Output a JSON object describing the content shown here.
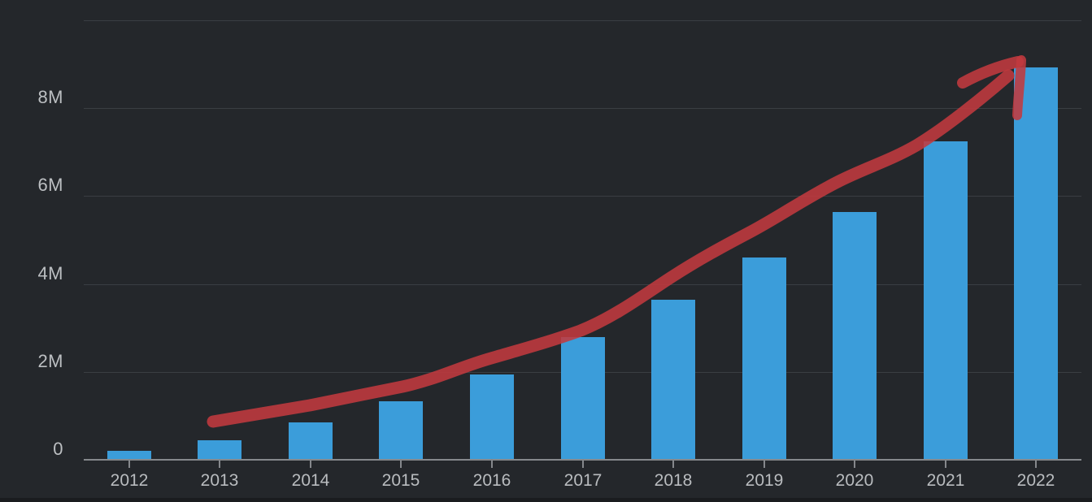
{
  "colors": {
    "background": "#24272b",
    "bar": "#3b9dda",
    "arrow_red": "#c23a3f",
    "gridline": "#3a3e43",
    "axis_line": "#85888c",
    "y_label": "#bcbfc2",
    "x_label": "#b9bcbf",
    "bottom_strip": "#1a1c1f"
  },
  "chart_data": {
    "type": "bar",
    "title": "",
    "xlabel": "",
    "ylabel": "",
    "categories": [
      "2012",
      "2013",
      "2014",
      "2015",
      "2016",
      "2017",
      "2018",
      "2019",
      "2020",
      "2021",
      "2022"
    ],
    "values": [
      200000,
      450000,
      850000,
      1330000,
      1950000,
      2800000,
      3640000,
      4600000,
      5630000,
      7250000,
      8930000
    ],
    "y_tick_labels": [
      "0",
      "2M",
      "4M",
      "6M",
      "8M"
    ],
    "y_tick_values": [
      0,
      2000000,
      4000000,
      6000000,
      8000000
    ],
    "ylim": [
      0,
      10000000
    ],
    "grid": true,
    "legend": false,
    "annotation": "hand-drawn red arrow emphasizing upward growth trend from 2013 to the 2022 bar"
  }
}
